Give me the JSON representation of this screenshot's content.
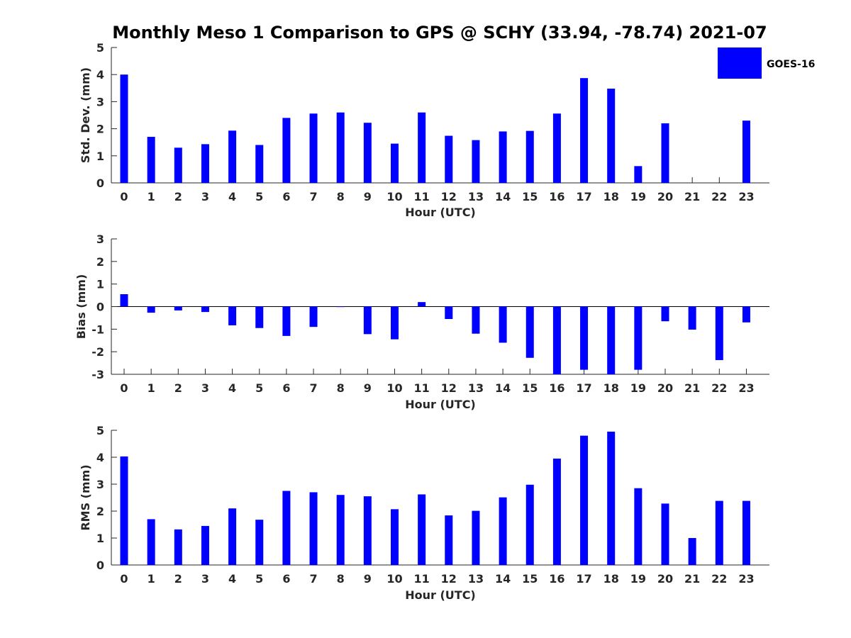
{
  "title": "Monthly Meso 1 Comparison to GPS @ SCHY (33.94, -78.74) 2021-07",
  "legend": {
    "label": "GOES-16",
    "color": "#0000ff"
  },
  "chart_data": [
    {
      "type": "bar",
      "name": "std",
      "ylabel": "Std. Dev. (mm)",
      "xlabel": "Hour (UTC)",
      "categories": [
        "0",
        "1",
        "2",
        "3",
        "4",
        "5",
        "6",
        "7",
        "8",
        "9",
        "10",
        "11",
        "12",
        "13",
        "14",
        "15",
        "16",
        "17",
        "18",
        "19",
        "20",
        "21",
        "22",
        "23"
      ],
      "values": [
        4.0,
        1.7,
        1.3,
        1.43,
        1.93,
        1.4,
        2.4,
        2.56,
        2.6,
        2.22,
        1.45,
        2.6,
        1.74,
        1.58,
        1.9,
        1.92,
        2.56,
        3.87,
        3.48,
        0.62,
        2.2,
        0,
        0,
        2.3
      ],
      "ylim": [
        0,
        5
      ],
      "yticks": [
        0,
        1,
        2,
        3,
        4,
        5
      ],
      "legend_position": "top-right",
      "color": "#0000ff"
    },
    {
      "type": "bar",
      "name": "bias",
      "ylabel": "Bias (mm)",
      "xlabel": "Hour (UTC)",
      "categories": [
        "0",
        "1",
        "2",
        "3",
        "4",
        "5",
        "6",
        "7",
        "8",
        "9",
        "10",
        "11",
        "12",
        "13",
        "14",
        "15",
        "16",
        "17",
        "18",
        "19",
        "20",
        "21",
        "22",
        "23"
      ],
      "values": [
        0.55,
        -0.27,
        -0.17,
        -0.24,
        -0.83,
        -0.95,
        -1.3,
        -0.9,
        -0.02,
        -1.22,
        -1.45,
        0.2,
        -0.55,
        -1.2,
        -1.6,
        -2.27,
        -3.0,
        -2.8,
        -3.0,
        -2.8,
        -0.65,
        -1.02,
        -2.37,
        -0.7
      ],
      "ylim": [
        -3,
        3
      ],
      "yticks": [
        -3,
        -2,
        -1,
        0,
        1,
        2,
        3
      ],
      "color": "#0000ff"
    },
    {
      "type": "bar",
      "name": "rms",
      "ylabel": "RMS (mm)",
      "xlabel": "Hour (UTC)",
      "categories": [
        "0",
        "1",
        "2",
        "3",
        "4",
        "5",
        "6",
        "7",
        "8",
        "9",
        "10",
        "11",
        "12",
        "13",
        "14",
        "15",
        "16",
        "17",
        "18",
        "19",
        "20",
        "21",
        "22",
        "23"
      ],
      "values": [
        4.03,
        1.7,
        1.32,
        1.45,
        2.1,
        1.68,
        2.75,
        2.7,
        2.6,
        2.55,
        2.07,
        2.62,
        1.84,
        2.01,
        2.51,
        2.98,
        3.95,
        4.8,
        4.95,
        2.85,
        2.28,
        1.0,
        2.38,
        2.38
      ],
      "ylim": [
        0,
        5
      ],
      "yticks": [
        0,
        1,
        2,
        3,
        4,
        5
      ],
      "color": "#0000ff"
    }
  ]
}
